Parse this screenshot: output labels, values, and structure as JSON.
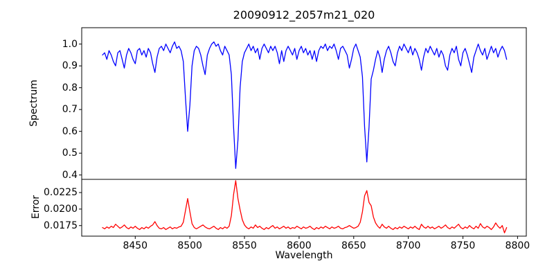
{
  "title": "20090912_2057m21_020",
  "colors": {
    "spectrum_line": "#0000ff",
    "error_line": "#ff0000",
    "axes": "#000000",
    "background": "#ffffff"
  },
  "chart_data": {
    "type": "line",
    "title": "20090912_2057m21_020",
    "xlabel": "Wavelength",
    "xlim": [
      8401,
      8808
    ],
    "xticks": [
      8450,
      8500,
      8550,
      8600,
      8650,
      8700,
      8750,
      8800
    ],
    "xtick_labels": [
      "8450",
      "8500",
      "8550",
      "8600",
      "8650",
      "8700",
      "8750",
      "8800"
    ],
    "grid": false,
    "legend": "none",
    "panels": [
      {
        "name": "spectrum",
        "ylabel": "Spectrum",
        "ylim": [
          0.38,
          1.075
        ],
        "yticks": [
          0.4,
          0.5,
          0.6,
          0.7,
          0.8,
          0.9,
          1.0
        ],
        "ytick_labels": [
          "0.4",
          "0.5",
          "0.6",
          "0.7",
          "0.8",
          "0.9",
          "1.0"
        ],
        "line_color": "#0000ff",
        "absorption_line_centers": [
          8498,
          8542,
          8662
        ],
        "x_start": 8420,
        "x_step": 2,
        "values": [
          0.95,
          0.96,
          0.93,
          0.97,
          0.95,
          0.92,
          0.9,
          0.96,
          0.97,
          0.93,
          0.89,
          0.95,
          0.98,
          0.96,
          0.93,
          0.91,
          0.97,
          0.98,
          0.95,
          0.97,
          0.94,
          0.98,
          0.96,
          0.91,
          0.87,
          0.94,
          0.98,
          0.99,
          0.97,
          1.0,
          0.98,
          0.96,
          0.99,
          1.01,
          0.98,
          0.99,
          0.97,
          0.92,
          0.75,
          0.6,
          0.72,
          0.9,
          0.97,
          0.99,
          0.98,
          0.95,
          0.9,
          0.86,
          0.95,
          0.98,
          1.0,
          1.01,
          0.99,
          1.0,
          0.97,
          0.95,
          0.99,
          0.97,
          0.95,
          0.86,
          0.62,
          0.43,
          0.56,
          0.8,
          0.92,
          0.96,
          0.98,
          1.0,
          0.97,
          0.99,
          0.96,
          0.98,
          0.93,
          0.98,
          1.0,
          0.98,
          0.96,
          0.99,
          0.97,
          0.99,
          0.96,
          0.91,
          0.97,
          0.92,
          0.97,
          0.99,
          0.97,
          0.95,
          0.98,
          0.93,
          0.97,
          0.99,
          0.96,
          0.98,
          0.95,
          0.97,
          0.93,
          0.97,
          0.92,
          0.97,
          0.99,
          0.98,
          1.0,
          0.97,
          0.99,
          0.98,
          1.0,
          0.97,
          0.93,
          0.98,
          0.99,
          0.97,
          0.95,
          0.89,
          0.93,
          0.98,
          1.0,
          0.97,
          0.94,
          0.85,
          0.62,
          0.46,
          0.62,
          0.84,
          0.88,
          0.93,
          0.97,
          0.94,
          0.87,
          0.93,
          0.97,
          0.99,
          0.96,
          0.92,
          0.9,
          0.96,
          0.99,
          0.97,
          1.0,
          0.98,
          0.96,
          0.99,
          0.95,
          0.98,
          0.96,
          0.93,
          0.88,
          0.94,
          0.98,
          0.96,
          0.99,
          0.97,
          0.95,
          0.98,
          0.94,
          0.97,
          0.95,
          0.9,
          0.88,
          0.95,
          0.98,
          0.96,
          0.99,
          0.93,
          0.9,
          0.96,
          0.98,
          0.95,
          0.91,
          0.87,
          0.94,
          0.97,
          1.0,
          0.97,
          0.95,
          0.98,
          0.93,
          0.96,
          0.99,
          0.96,
          0.98,
          0.94,
          0.97,
          0.99,
          0.97,
          0.93
        ]
      },
      {
        "name": "error",
        "ylabel": "Error",
        "ylim": [
          0.0159,
          0.0245
        ],
        "yticks": [
          0.0175,
          0.02,
          0.0225
        ],
        "ytick_labels": [
          "0.0175",
          "0.0200",
          "0.0225"
        ],
        "line_color": "#ff0000",
        "peak_centers": [
          8498,
          8542,
          8662
        ],
        "x_start": 8420,
        "x_step": 2,
        "values": [
          0.0172,
          0.017,
          0.0173,
          0.0171,
          0.0174,
          0.0172,
          0.0177,
          0.0174,
          0.0171,
          0.0173,
          0.0176,
          0.0172,
          0.017,
          0.0173,
          0.0171,
          0.0174,
          0.0171,
          0.0169,
          0.0172,
          0.017,
          0.0173,
          0.0171,
          0.0174,
          0.0176,
          0.0181,
          0.0175,
          0.0171,
          0.017,
          0.0172,
          0.0169,
          0.0171,
          0.0173,
          0.017,
          0.0172,
          0.0171,
          0.0173,
          0.0174,
          0.018,
          0.0198,
          0.0216,
          0.0196,
          0.0178,
          0.0172,
          0.017,
          0.0172,
          0.0174,
          0.0176,
          0.0173,
          0.0171,
          0.017,
          0.0172,
          0.0174,
          0.0171,
          0.0169,
          0.0172,
          0.017,
          0.0173,
          0.0171,
          0.0174,
          0.019,
          0.0222,
          0.0243,
          0.0216,
          0.0199,
          0.0184,
          0.0176,
          0.0172,
          0.017,
          0.0173,
          0.0171,
          0.0176,
          0.0172,
          0.0174,
          0.0171,
          0.0169,
          0.0172,
          0.017,
          0.0173,
          0.0175,
          0.0171,
          0.0173,
          0.017,
          0.0172,
          0.0174,
          0.0171,
          0.0173,
          0.017,
          0.0172,
          0.0171,
          0.0174,
          0.0172,
          0.017,
          0.0173,
          0.0171,
          0.0172,
          0.0174,
          0.0171,
          0.0169,
          0.0172,
          0.017,
          0.0173,
          0.0171,
          0.0174,
          0.0172,
          0.017,
          0.0173,
          0.0171,
          0.0172,
          0.0174,
          0.0171,
          0.017,
          0.0172,
          0.0173,
          0.0175,
          0.0173,
          0.0171,
          0.0172,
          0.0174,
          0.018,
          0.0196,
          0.022,
          0.0228,
          0.021,
          0.0205,
          0.0188,
          0.0179,
          0.0174,
          0.0171,
          0.0177,
          0.0173,
          0.0171,
          0.0174,
          0.0171,
          0.0169,
          0.0172,
          0.017,
          0.0173,
          0.0171,
          0.0174,
          0.0172,
          0.017,
          0.0173,
          0.0171,
          0.0174,
          0.0171,
          0.0169,
          0.0177,
          0.0173,
          0.0171,
          0.0174,
          0.0171,
          0.0173,
          0.017,
          0.0172,
          0.0174,
          0.0171,
          0.0173,
          0.0176,
          0.0172,
          0.017,
          0.0173,
          0.0171,
          0.0174,
          0.0177,
          0.0172,
          0.017,
          0.0173,
          0.0171,
          0.0175,
          0.0172,
          0.017,
          0.0174,
          0.0171,
          0.0178,
          0.0173,
          0.0171,
          0.0174,
          0.0172,
          0.0169,
          0.0173,
          0.0179,
          0.0174,
          0.0171,
          0.0175,
          0.0164,
          0.0172
        ]
      }
    ]
  }
}
